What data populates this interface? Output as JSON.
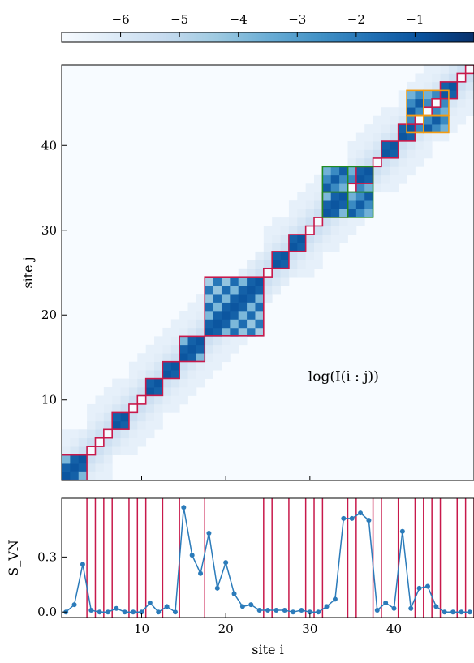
{
  "chart_data": [
    {
      "type": "heatmap",
      "title": "",
      "annotation": "log(I(i : j))",
      "xlabel": "",
      "ylabel": "site j",
      "xlim": [
        0.5,
        49.5
      ],
      "ylim": [
        0.5,
        49.5
      ],
      "x_ticks": [
        10,
        20,
        30,
        40
      ],
      "y_ticks": [
        10,
        20,
        30,
        40
      ],
      "y_tick_labels": [
        "10",
        "20",
        "30",
        "40"
      ],
      "colorbar": {
        "range": [
          -7,
          0
        ],
        "ticks": [
          -6,
          -5,
          -4,
          -3,
          -2,
          -1
        ],
        "tick_labels": [
          "−6",
          "−5",
          "−4",
          "−3",
          "−2",
          "−1"
        ],
        "colormap": "Blues",
        "position": "top"
      },
      "blocks_red": [
        [
          1,
          3
        ],
        [
          4,
          4
        ],
        [
          5,
          5
        ],
        [
          6,
          6
        ],
        [
          7,
          8
        ],
        [
          9,
          9
        ],
        [
          10,
          10
        ],
        [
          11,
          12
        ],
        [
          13,
          14
        ],
        [
          15,
          17
        ],
        [
          18,
          24
        ],
        [
          25,
          25
        ],
        [
          26,
          27
        ],
        [
          28,
          29
        ],
        [
          30,
          30
        ],
        [
          31,
          31
        ],
        [
          32,
          34
        ],
        [
          35,
          35
        ],
        [
          36,
          37
        ],
        [
          38,
          38
        ],
        [
          39,
          40
        ],
        [
          41,
          42
        ],
        [
          43,
          43
        ],
        [
          44,
          44
        ],
        [
          45,
          45
        ],
        [
          46,
          47
        ],
        [
          48,
          48
        ],
        [
          49,
          49
        ]
      ],
      "boxes_green": [
        [
          32,
          34,
          35,
          37
        ],
        [
          32,
          34,
          32,
          34
        ],
        [
          35,
          37,
          35,
          37
        ],
        [
          35,
          37,
          32,
          34
        ]
      ],
      "boxes_orange": [
        [
          42,
          43,
          44,
          46
        ],
        [
          44,
          46,
          44,
          46
        ],
        [
          42,
          43,
          42,
          43
        ],
        [
          44,
          46,
          42,
          43
        ]
      ],
      "colors": {
        "block_red": "#c8194b",
        "box_green": "#228b22",
        "box_orange": "#f39c12"
      }
    },
    {
      "type": "line",
      "xlabel": "site i",
      "ylabel": "S_VN",
      "xlim": [
        0.5,
        49.5
      ],
      "ylim": [
        -0.03,
        0.62
      ],
      "x_ticks": [
        10,
        20,
        30,
        40
      ],
      "x_tick_labels": [
        "10",
        "20",
        "30",
        "40"
      ],
      "y_ticks": [
        0.0,
        0.3
      ],
      "y_tick_labels": [
        "0.0",
        "0.3"
      ],
      "x": [
        1,
        2,
        3,
        4,
        5,
        6,
        7,
        8,
        9,
        10,
        11,
        12,
        13,
        14,
        15,
        16,
        17,
        18,
        19,
        20,
        21,
        22,
        23,
        24,
        25,
        26,
        27,
        28,
        29,
        30,
        31,
        32,
        33,
        34,
        35,
        36,
        37,
        38,
        39,
        40,
        41,
        42,
        43,
        44,
        45,
        46,
        47,
        48,
        49
      ],
      "values": [
        0.0,
        0.04,
        0.26,
        0.01,
        0.0,
        0.0,
        0.02,
        0.0,
        0.0,
        0.0,
        0.05,
        0.0,
        0.03,
        0.0,
        0.57,
        0.31,
        0.21,
        0.43,
        0.13,
        0.27,
        0.1,
        0.03,
        0.04,
        0.01,
        0.01,
        0.01,
        0.01,
        0.0,
        0.01,
        0.0,
        0.0,
        0.03,
        0.07,
        0.51,
        0.51,
        0.54,
        0.5,
        0.01,
        0.05,
        0.02,
        0.44,
        0.02,
        0.13,
        0.14,
        0.03,
        0.0,
        0.0,
        0.0,
        0.0
      ],
      "vlines": [
        3.5,
        4.5,
        5.5,
        6.5,
        8.5,
        9.5,
        10.5,
        12.5,
        14.5,
        17.5,
        24.5,
        25.5,
        27.5,
        29.5,
        30.5,
        31.5,
        34.5,
        35.5,
        37.5,
        38.5,
        40.5,
        42.5,
        43.5,
        44.5,
        45.5,
        47.5,
        48.5,
        49.5
      ],
      "colors": {
        "line": "#2b7bba",
        "vline": "#c8194b"
      }
    }
  ]
}
